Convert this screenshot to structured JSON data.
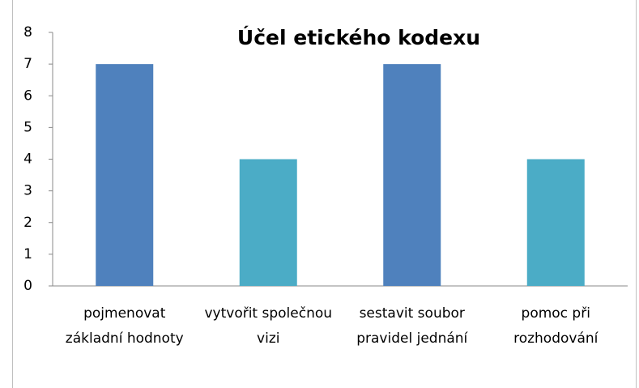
{
  "chart_data": {
    "type": "bar",
    "title": "Účel etického kodexu",
    "categories": [
      "pojmenovat základní hodnoty",
      "vytvořit společnou vizi",
      "sestavit soubor pravidel jednání",
      "pomoc při rozhodování"
    ],
    "values": [
      7,
      4,
      7,
      4
    ],
    "colors": [
      "#4f81bd",
      "#4bacc6",
      "#4f81bd",
      "#4bacc6"
    ],
    "ylim": [
      0,
      8
    ],
    "yticks": [
      0,
      1,
      2,
      3,
      4,
      5,
      6,
      7,
      8
    ],
    "grid": false
  }
}
